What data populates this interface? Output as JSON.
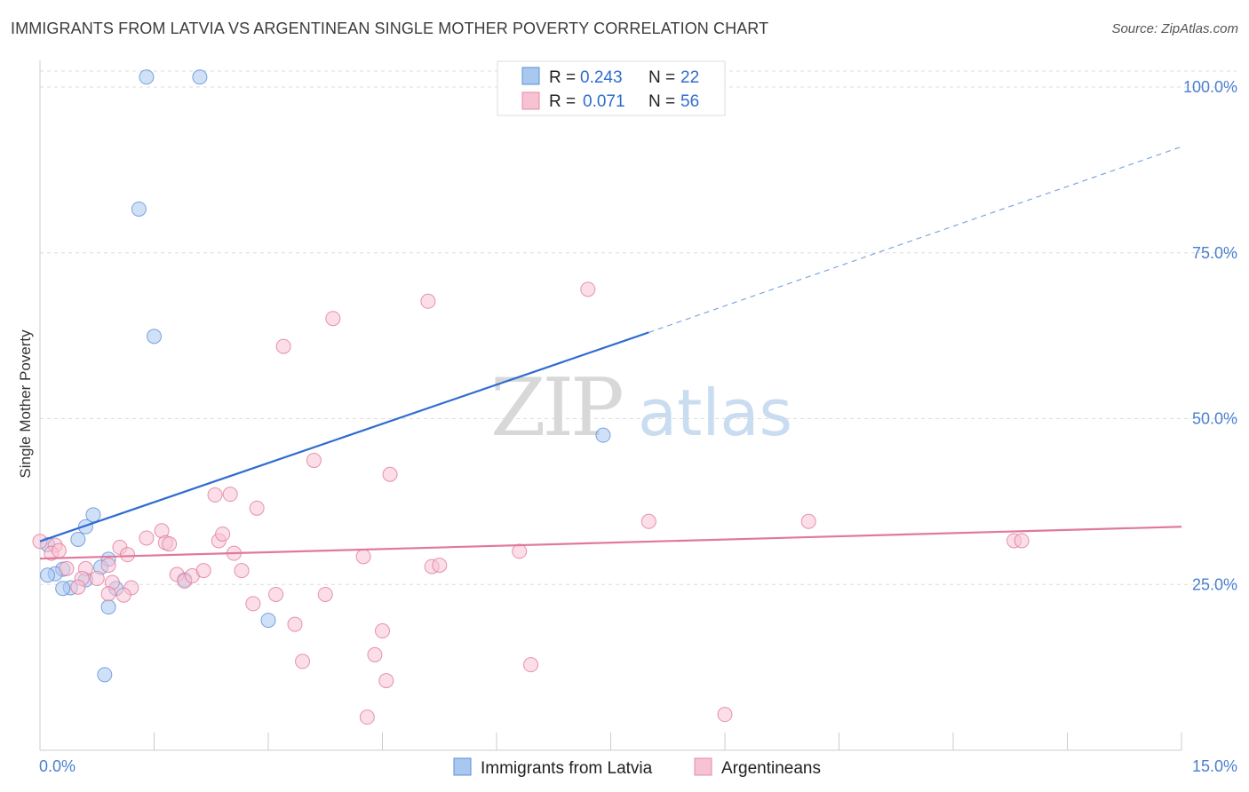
{
  "title": "IMMIGRANTS FROM LATVIA VS ARGENTINEAN SINGLE MOTHER POVERTY CORRELATION CHART",
  "source": "Source: ZipAtlas.com",
  "watermark": {
    "zip": "ZIP",
    "atlas": "atlas"
  },
  "legend": {
    "r_label": "R =",
    "n_label": "N =",
    "rows": [
      {
        "r": "0.243",
        "n": "22",
        "color": "#a9c8f0",
        "border": "#5b8fd6"
      },
      {
        "r": "0.071",
        "n": "56",
        "color": "#f7c3d3",
        "border": "#e58aa8"
      }
    ]
  },
  "chart_data": {
    "type": "scatter",
    "title": "IMMIGRANTS FROM LATVIA VS ARGENTINEAN SINGLE MOTHER POVERTY CORRELATION CHART",
    "xlabel": "",
    "ylabel": "Single Mother Poverty",
    "xlim": [
      0,
      15
    ],
    "ylim": [
      0,
      100
    ],
    "x_ticks": [
      "0.0%",
      "15.0%"
    ],
    "y_ticks": [
      {
        "value": 25,
        "label": "25.0%"
      },
      {
        "value": 50,
        "label": "50.0%"
      },
      {
        "value": 75,
        "label": "75.0%"
      },
      {
        "value": 100,
        "label": "100.0%"
      }
    ],
    "grid": true,
    "legend_position": "top-center",
    "series": [
      {
        "name": "Immigrants from Latvia",
        "color": "#5b8fd6",
        "fill": "#a9c8f0",
        "trend": {
          "x0": 0,
          "y0": 31.5,
          "x1": 8.0,
          "y1": 63.0,
          "dashed_to_x": 15,
          "dashed_to_y": 91.0
        },
        "points": [
          [
            1.4,
            101.5
          ],
          [
            2.1,
            101.5
          ],
          [
            1.3,
            81.6
          ],
          [
            1.5,
            62.4
          ],
          [
            7.4,
            47.5
          ],
          [
            0.7,
            35.5
          ],
          [
            0.6,
            33.7
          ],
          [
            0.5,
            31.8
          ],
          [
            0.9,
            28.8
          ],
          [
            0.8,
            27.6
          ],
          [
            0.3,
            27.3
          ],
          [
            0.2,
            26.6
          ],
          [
            0.1,
            26.4
          ],
          [
            0.6,
            25.7
          ],
          [
            0.4,
            24.5
          ],
          [
            0.3,
            24.4
          ],
          [
            1.9,
            25.7
          ],
          [
            1.0,
            24.4
          ],
          [
            0.9,
            21.6
          ],
          [
            3.0,
            19.6
          ],
          [
            0.85,
            11.4
          ],
          [
            0.1,
            31.0
          ]
        ]
      },
      {
        "name": "Argentineans",
        "color": "#e0799c",
        "fill": "#f7c3d3",
        "trend": {
          "x0": 0,
          "y0": 28.9,
          "x1": 15,
          "y1": 33.7
        },
        "points": [
          [
            0.0,
            31.5
          ],
          [
            0.2,
            30.9
          ],
          [
            0.15,
            29.7
          ],
          [
            0.6,
            27.4
          ],
          [
            0.9,
            27.9
          ],
          [
            1.05,
            30.6
          ],
          [
            1.15,
            29.5
          ],
          [
            1.4,
            32.0
          ],
          [
            1.6,
            33.1
          ],
          [
            1.65,
            31.3
          ],
          [
            1.7,
            31.1
          ],
          [
            0.35,
            27.4
          ],
          [
            0.55,
            25.9
          ],
          [
            0.75,
            25.9
          ],
          [
            0.95,
            25.3
          ],
          [
            1.2,
            24.5
          ],
          [
            0.5,
            24.6
          ],
          [
            0.9,
            23.6
          ],
          [
            1.1,
            23.4
          ],
          [
            1.8,
            26.5
          ],
          [
            1.9,
            25.5
          ],
          [
            2.0,
            26.3
          ],
          [
            2.15,
            27.1
          ],
          [
            2.3,
            38.5
          ],
          [
            2.5,
            38.6
          ],
          [
            2.35,
            31.6
          ],
          [
            2.4,
            32.6
          ],
          [
            2.55,
            29.7
          ],
          [
            2.65,
            27.1
          ],
          [
            2.85,
            36.5
          ],
          [
            2.8,
            22.1
          ],
          [
            3.1,
            23.5
          ],
          [
            3.2,
            60.9
          ],
          [
            3.35,
            19.0
          ],
          [
            3.45,
            13.4
          ],
          [
            3.6,
            43.7
          ],
          [
            3.75,
            23.5
          ],
          [
            3.85,
            65.1
          ],
          [
            4.25,
            29.2
          ],
          [
            4.4,
            14.4
          ],
          [
            4.5,
            18.0
          ],
          [
            4.6,
            41.6
          ],
          [
            4.55,
            10.5
          ],
          [
            4.3,
            5.0
          ],
          [
            5.1,
            67.7
          ],
          [
            5.15,
            27.7
          ],
          [
            5.25,
            27.9
          ],
          [
            6.3,
            30.0
          ],
          [
            6.45,
            12.9
          ],
          [
            7.2,
            69.5
          ],
          [
            8.0,
            34.5
          ],
          [
            9.0,
            5.4
          ],
          [
            10.1,
            34.5
          ],
          [
            12.8,
            31.6
          ],
          [
            12.9,
            31.6
          ],
          [
            0.25,
            30.1
          ]
        ]
      }
    ]
  }
}
